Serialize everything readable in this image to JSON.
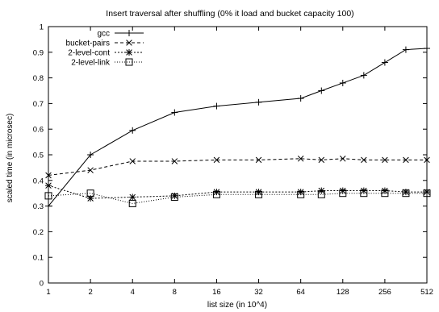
{
  "chart_data": {
    "type": "line",
    "title": "Insert traversal  after shuffling (0% it load and bucket capacity 100)",
    "xlabel": "list size (in 10^4)",
    "ylabel": "scaled time (in microsec)",
    "x_scale": "log2",
    "xlim": [
      1,
      512
    ],
    "ylim": [
      0,
      1
    ],
    "x_ticks": [
      "1",
      "2",
      "4",
      "8",
      "16",
      "32",
      "64",
      "128",
      "256",
      "512"
    ],
    "y_ticks": [
      "0",
      "0.1",
      "0.2",
      "0.3",
      "0.4",
      "0.5",
      "0.6",
      "0.7",
      "0.8",
      "0.9",
      "1"
    ],
    "legend_position": "top-left",
    "grid": false,
    "x": [
      1,
      2,
      4,
      8,
      16,
      32,
      64,
      90,
      128,
      181,
      256,
      362,
      512
    ],
    "series": [
      {
        "name": "gcc",
        "marker": "plus",
        "dash": "solid",
        "values": [
          0.3,
          0.5,
          0.595,
          0.665,
          0.69,
          0.705,
          0.72,
          0.75,
          0.78,
          0.81,
          0.86,
          0.91,
          0.915
        ]
      },
      {
        "name": "bucket-pairs",
        "marker": "cross",
        "dash": "dashed",
        "values": [
          0.42,
          0.44,
          0.475,
          0.475,
          0.48,
          0.48,
          0.485,
          0.48,
          0.485,
          0.48,
          0.48,
          0.48,
          0.48
        ]
      },
      {
        "name": "2-level-cont",
        "marker": "star",
        "dash": "dotted",
        "values": [
          0.38,
          0.33,
          0.335,
          0.34,
          0.355,
          0.355,
          0.355,
          0.36,
          0.36,
          0.36,
          0.36,
          0.355,
          0.355
        ]
      },
      {
        "name": "2-level-link",
        "marker": "square",
        "dash": "fine-dotted",
        "values": [
          0.34,
          0.35,
          0.31,
          0.335,
          0.345,
          0.345,
          0.345,
          0.345,
          0.35,
          0.35,
          0.35,
          0.35,
          0.35
        ]
      }
    ]
  }
}
